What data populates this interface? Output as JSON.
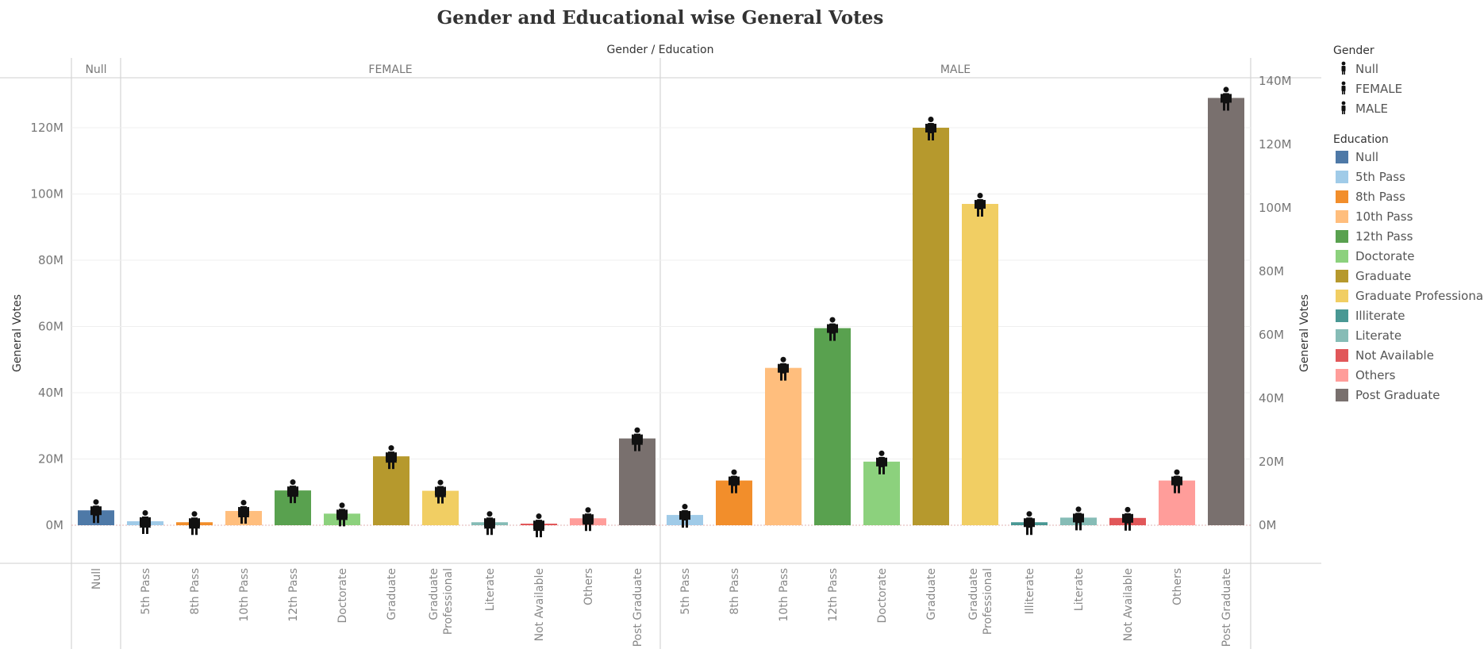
{
  "chart_data": {
    "type": "bar",
    "title": "Gender and Educational wise General Votes",
    "column_header": "Gender / Education",
    "ylabel": "General Votes",
    "y_left": {
      "range": [
        -8,
        128
      ],
      "ticks": [
        0,
        20,
        40,
        60,
        80,
        100,
        120
      ],
      "labels": [
        "0M",
        "20M",
        "40M",
        "60M",
        "80M",
        "100M",
        "120M"
      ]
    },
    "y_right": {
      "ticks": [
        0,
        20,
        40,
        60,
        80,
        100,
        120,
        140
      ],
      "labels": [
        "0M",
        "20M",
        "40M",
        "60M",
        "80M",
        "100M",
        "120M",
        "140M"
      ]
    },
    "colors": {
      "Null": "#4e79a7",
      "5th Pass": "#a0cbe8",
      "8th Pass": "#f28e2b",
      "10th Pass": "#ffbe7d",
      "12th Pass": "#59a14f",
      "Doctorate": "#8cd17d",
      "Graduate": "#b6992d",
      "Graduate Professional": "#f1ce63",
      "Illiterate": "#499894",
      "Literate": "#86bcb6",
      "Not Available": "#e15759",
      "Others": "#ff9d9a",
      "Post Graduate": "#79706e"
    },
    "panes": [
      {
        "gender": "Null",
        "bars": [
          {
            "education": "Null",
            "value": 4.5
          }
        ]
      },
      {
        "gender": "FEMALE",
        "bars": [
          {
            "education": "5th Pass",
            "value": 1.2
          },
          {
            "education": "8th Pass",
            "value": 0.9
          },
          {
            "education": "10th Pass",
            "value": 4.3
          },
          {
            "education": "12th Pass",
            "value": 10.5
          },
          {
            "education": "Doctorate",
            "value": 3.5
          },
          {
            "education": "Graduate",
            "value": 20.8
          },
          {
            "education": "Graduate Professional",
            "value": 10.4
          },
          {
            "education": "Literate",
            "value": 0.9
          },
          {
            "education": "Not Available",
            "value": 0.2
          },
          {
            "education": "Others",
            "value": 2.1
          },
          {
            "education": "Post Graduate",
            "value": 26.2
          }
        ]
      },
      {
        "gender": "MALE",
        "bars": [
          {
            "education": "5th Pass",
            "value": 3.1
          },
          {
            "education": "8th Pass",
            "value": 13.5
          },
          {
            "education": "10th Pass",
            "value": 47.5
          },
          {
            "education": "12th Pass",
            "value": 59.5
          },
          {
            "education": "Doctorate",
            "value": 19.2
          },
          {
            "education": "Graduate",
            "value": 120
          },
          {
            "education": "Graduate Professional",
            "value": 97
          },
          {
            "education": "Illiterate",
            "value": 0.9
          },
          {
            "education": "Literate",
            "value": 2.3
          },
          {
            "education": "Not Available",
            "value": 2.2
          },
          {
            "education": "Others",
            "value": 13.5
          },
          {
            "education": "Post Graduate",
            "value": 129
          }
        ]
      }
    ],
    "legend_gender": {
      "title": "Gender",
      "items": [
        "Null",
        "FEMALE",
        "MALE"
      ]
    },
    "legend_education": {
      "title": "Education",
      "items": [
        "Null",
        "5th Pass",
        "8th Pass",
        "10th Pass",
        "12th Pass",
        "Doctorate",
        "Graduate",
        "Graduate Professional",
        "Illiterate",
        "Literate",
        "Not Available",
        "Others",
        "Post Graduate"
      ]
    }
  }
}
